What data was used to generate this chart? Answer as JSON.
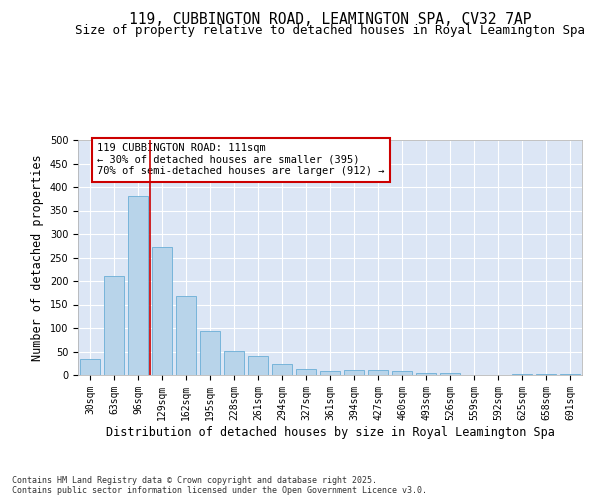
{
  "title": "119, CUBBINGTON ROAD, LEAMINGTON SPA, CV32 7AP",
  "subtitle": "Size of property relative to detached houses in Royal Leamington Spa",
  "xlabel": "Distribution of detached houses by size in Royal Leamington Spa",
  "ylabel": "Number of detached properties",
  "bar_color": "#b8d4ea",
  "bar_edge_color": "#6aaed6",
  "background_color": "#dce6f5",
  "grid_color": "#ffffff",
  "categories": [
    "30sqm",
    "63sqm",
    "96sqm",
    "129sqm",
    "162sqm",
    "195sqm",
    "228sqm",
    "261sqm",
    "294sqm",
    "327sqm",
    "361sqm",
    "394sqm",
    "427sqm",
    "460sqm",
    "493sqm",
    "526sqm",
    "559sqm",
    "592sqm",
    "625sqm",
    "658sqm",
    "691sqm"
  ],
  "values": [
    35,
    210,
    381,
    273,
    168,
    93,
    52,
    40,
    23,
    13,
    8,
    11,
    11,
    9,
    5,
    4,
    1,
    1,
    3,
    2,
    3
  ],
  "ylim": [
    0,
    500
  ],
  "yticks": [
    0,
    50,
    100,
    150,
    200,
    250,
    300,
    350,
    400,
    450,
    500
  ],
  "annotation_line1": "119 CUBBINGTON ROAD: 111sqm",
  "annotation_line2": "← 30% of detached houses are smaller (395)",
  "annotation_line3": "70% of semi-detached houses are larger (912) →",
  "annotation_box_color": "#ffffff",
  "annotation_box_edge_color": "#cc0000",
  "vline_x": 2.5,
  "vline_color": "#cc0000",
  "footnote": "Contains HM Land Registry data © Crown copyright and database right 2025.\nContains public sector information licensed under the Open Government Licence v3.0.",
  "title_fontsize": 10.5,
  "subtitle_fontsize": 9,
  "axis_label_fontsize": 8.5,
  "tick_fontsize": 7,
  "annotation_fontsize": 7.5,
  "footnote_fontsize": 6
}
